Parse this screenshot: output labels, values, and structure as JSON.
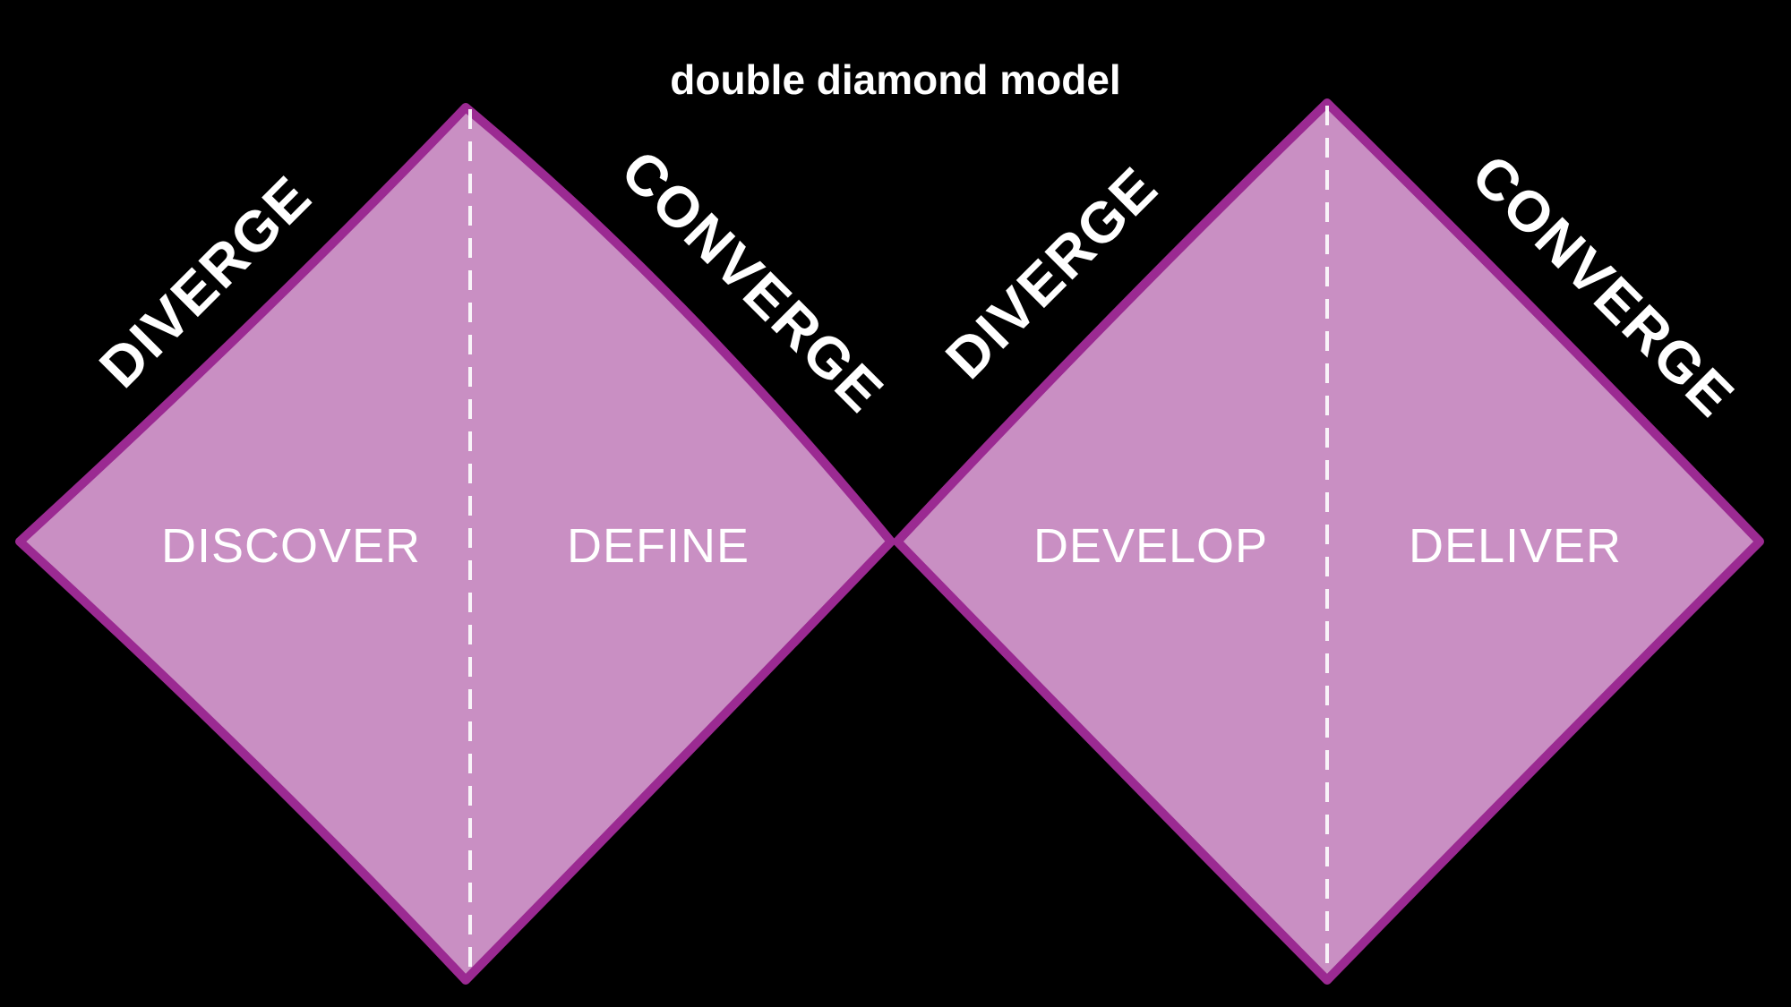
{
  "title": "double diamond model",
  "colors": {
    "background": "#000000",
    "diamond_fill": "#c98fc3",
    "diamond_outline": "#9b2a92",
    "text": "#ffffff"
  },
  "diamonds": [
    {
      "phases": [
        "DISCOVER",
        "DEFINE"
      ],
      "edge_labels": {
        "rising": "DIVERGE",
        "falling": "CONVERGE"
      }
    },
    {
      "phases": [
        "DEVELOP",
        "DELIVER"
      ],
      "edge_labels": {
        "rising": "DIVERGE",
        "falling": "CONVERGE"
      }
    }
  ]
}
